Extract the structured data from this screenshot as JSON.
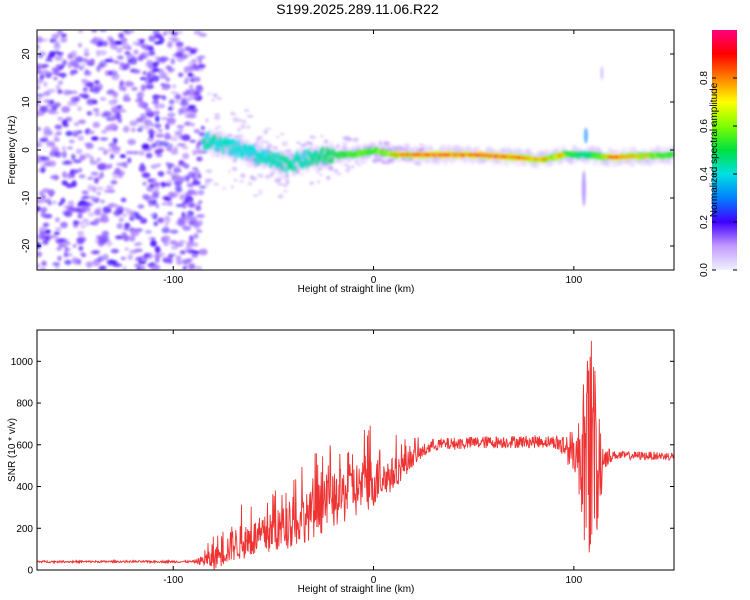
{
  "title": "S199.2025.289.11.06.R22",
  "colorbar": {
    "label": "Normalized spectral amplitude",
    "ticks": [
      "0.0",
      "0.2",
      "0.4",
      "0.6",
      "0.8"
    ],
    "tick_values": [
      0.0,
      0.2,
      0.4,
      0.6,
      0.8
    ]
  },
  "chart_data": [
    {
      "type": "heatmap",
      "name": "spectrogram",
      "title": "S199.2025.289.11.06.R22",
      "xlabel": "Height of straight line (km)",
      "ylabel": "Frequency (Hz)",
      "xlim": [
        -168,
        150
      ],
      "ylim": [
        -25,
        25
      ],
      "xticks": [
        -100,
        0,
        100
      ],
      "xtick_labels": [
        "-100",
        "0",
        "100"
      ],
      "yticks": [
        -20,
        -10,
        0,
        10,
        20
      ],
      "ytick_labels": [
        "-20",
        "-10",
        "0",
        "10",
        "20"
      ],
      "ridge": {
        "x": [
          -85,
          -75,
          -60,
          -45,
          -35,
          -20,
          -10,
          0,
          10,
          30,
          50,
          70,
          85,
          95,
          105,
          120,
          150
        ],
        "y": [
          2,
          1,
          -1,
          -3,
          -2,
          -1,
          -1,
          0,
          -1,
          -1,
          -1,
          -1.5,
          -2,
          -1,
          -1,
          -1.5,
          -1
        ],
        "amplitude": [
          0.35,
          0.35,
          0.3,
          0.4,
          0.35,
          0.5,
          0.6,
          0.6,
          0.75,
          0.95,
          0.9,
          0.85,
          0.75,
          0.7,
          0.4,
          0.85,
          0.55
        ]
      },
      "noise_region_x": [
        -168,
        -85
      ],
      "spike_x": 105,
      "colorbar_range": [
        0,
        1
      ],
      "colormap": "rainbow"
    },
    {
      "type": "line",
      "name": "snr",
      "xlabel": "Height of straight line (km)",
      "ylabel": "SNR (10 * v/v)",
      "xlim": [
        -168,
        150
      ],
      "ylim": [
        0,
        1150
      ],
      "xticks": [
        -100,
        0,
        100
      ],
      "xtick_labels": [
        "-100",
        "0",
        "100"
      ],
      "yticks": [
        0,
        200,
        400,
        600,
        800,
        1000
      ],
      "ytick_labels": [
        "0",
        "200",
        "400",
        "600",
        "800",
        "1000"
      ],
      "series": [
        {
          "name": "SNR",
          "color": "#ee3333",
          "envelope_x": [
            -168,
            -90,
            -80,
            -70,
            -60,
            -50,
            -40,
            -30,
            -20,
            -10,
            0,
            10,
            20,
            30,
            50,
            70,
            90,
            100,
            105,
            108,
            110,
            112,
            115,
            120,
            150
          ],
          "envelope_y": [
            40,
            40,
            50,
            120,
            150,
            180,
            220,
            270,
            330,
            380,
            420,
            460,
            540,
            600,
            610,
            615,
            615,
            570,
            520,
            560,
            560,
            500,
            540,
            550,
            545
          ],
          "spread": [
            5,
            5,
            50,
            80,
            90,
            100,
            110,
            120,
            130,
            140,
            120,
            80,
            40,
            30,
            30,
            30,
            30,
            100,
            300,
            450,
            400,
            250,
            60,
            20,
            20
          ]
        }
      ]
    }
  ]
}
